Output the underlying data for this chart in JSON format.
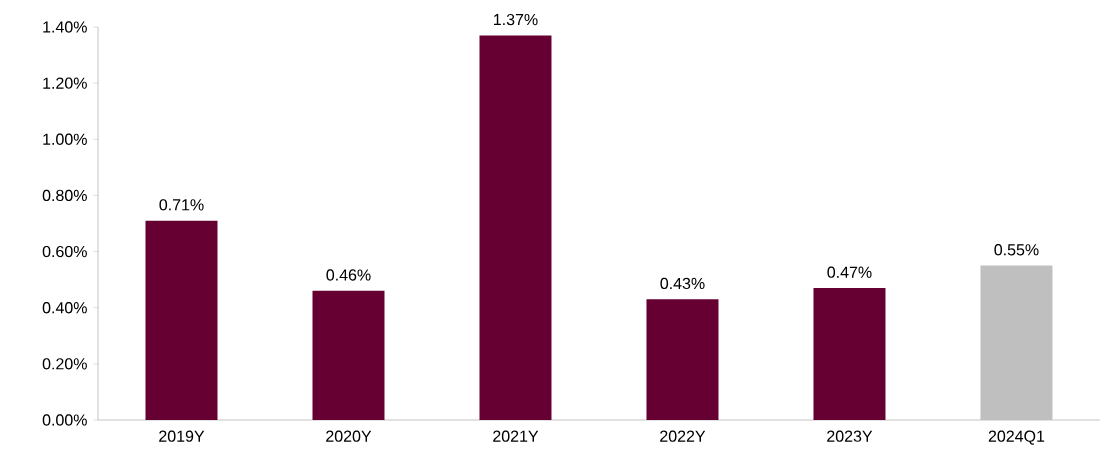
{
  "chart_data": {
    "type": "bar",
    "categories": [
      "2019Y",
      "2020Y",
      "2021Y",
      "2022Y",
      "2023Y",
      "2024Q1"
    ],
    "values": [
      0.71,
      0.46,
      1.37,
      0.43,
      0.47,
      0.55
    ],
    "colors": [
      "#660033",
      "#660033",
      "#660033",
      "#660033",
      "#660033",
      "#bfbfbf"
    ],
    "value_labels": [
      "0.71%",
      "0.46%",
      "1.37%",
      "0.43%",
      "0.47%",
      "0.55%"
    ],
    "ylim": [
      0,
      1.4
    ],
    "yticks": [
      {
        "value": 0,
        "label": "0.00%"
      },
      {
        "value": 0.2,
        "label": "0.20%"
      },
      {
        "value": 0.4,
        "label": "0.40%"
      },
      {
        "value": 0.6,
        "label": "0.60%"
      },
      {
        "value": 0.8,
        "label": "0.80%"
      },
      {
        "value": 1.0,
        "label": "1.00%"
      },
      {
        "value": 1.2,
        "label": "1.20%"
      },
      {
        "value": 1.4,
        "label": "1.40%"
      }
    ]
  }
}
